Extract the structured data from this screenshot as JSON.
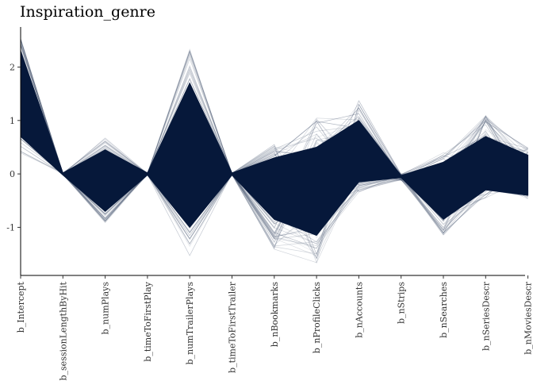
{
  "chart_data": {
    "type": "line",
    "title": "Inspiration_genre",
    "xlabel": "",
    "ylabel": "",
    "ylim": [
      -1.9,
      2.75
    ],
    "yticks": [
      2,
      1,
      0,
      -1
    ],
    "ytick_labels": [
      "2",
      "1",
      "0",
      "-1"
    ],
    "categories": [
      "b_Intercept",
      "b_sessionLengthByHit",
      "b_numPlays",
      "b_timeToFirstPlay",
      "b_numTrailerPlays",
      "b_timeToFirstTrailer",
      "b_nBookmarks",
      "b_nProfileClicks",
      "b_nAccounts",
      "b_nStrips",
      "b_nSearches",
      "b_nSeriesDescr",
      "b_nMoviesDescr"
    ],
    "band_upper": [
      2.3,
      0.02,
      0.45,
      0.02,
      1.7,
      0.02,
      0.3,
      0.5,
      1.0,
      -0.03,
      0.22,
      0.7,
      0.35
    ],
    "band_lower": [
      0.7,
      -0.02,
      -0.7,
      -0.02,
      -1.0,
      -0.02,
      -0.85,
      -1.15,
      -0.15,
      -0.07,
      -0.85,
      -0.3,
      -0.4
    ],
    "extreme_upper": [
      2.55,
      0.02,
      0.7,
      0.02,
      2.35,
      0.02,
      0.55,
      1.05,
      1.38,
      0.0,
      0.45,
      1.12,
      0.52
    ],
    "extreme_lower": [
      0.38,
      -0.02,
      -0.93,
      -0.02,
      -1.57,
      -0.02,
      -1.43,
      -1.68,
      -0.35,
      -0.12,
      -1.15,
      -0.48,
      -0.48
    ],
    "line_color": "#06183a",
    "grid": false
  }
}
